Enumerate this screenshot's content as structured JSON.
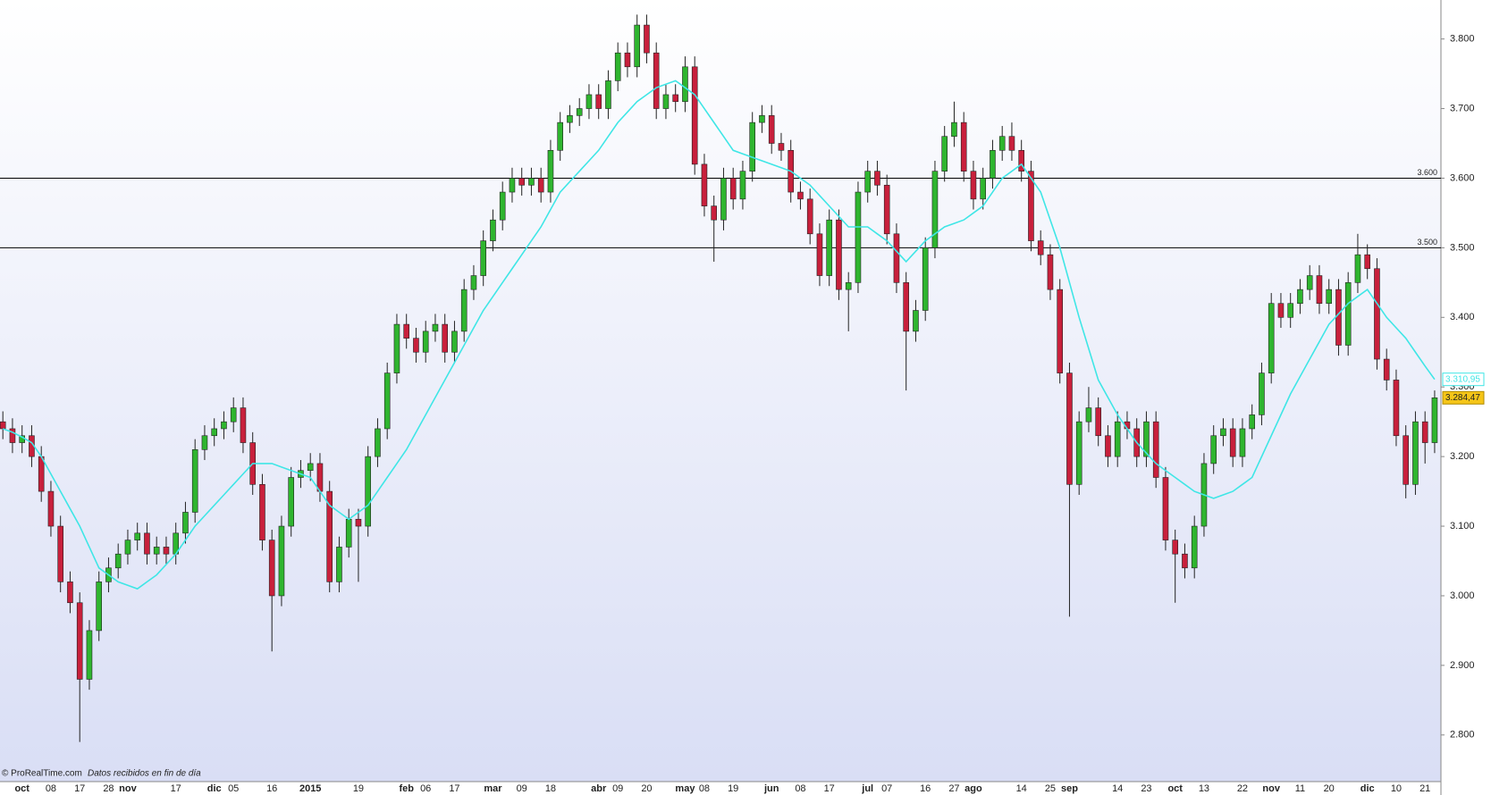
{
  "chart_data": {
    "type": "candlestick",
    "categories": [
      null,
      null,
      "oct",
      null,
      null,
      "08",
      null,
      null,
      "17",
      null,
      null,
      "28",
      null,
      "nov",
      null,
      null,
      null,
      null,
      "17",
      null,
      null,
      null,
      "dic",
      null,
      "05",
      null,
      null,
      null,
      "16",
      null,
      null,
      null,
      "2015",
      null,
      null,
      null,
      null,
      "19",
      null,
      null,
      null,
      null,
      "feb",
      null,
      "06",
      null,
      null,
      "17",
      null,
      null,
      null,
      "mar",
      null,
      null,
      "09",
      null,
      null,
      "18",
      null,
      null,
      null,
      null,
      "abr",
      null,
      "09",
      null,
      null,
      "20",
      null,
      null,
      null,
      "may",
      null,
      "08",
      null,
      null,
      "19",
      null,
      null,
      null,
      "jun",
      null,
      null,
      "08",
      null,
      null,
      "17",
      null,
      null,
      null,
      "jul",
      null,
      "07",
      null,
      null,
      null,
      "16",
      null,
      null,
      "27",
      null,
      "ago",
      null,
      null,
      null,
      null,
      "14",
      null,
      null,
      "25",
      null,
      "sep",
      null,
      null,
      null,
      null,
      "14",
      null,
      null,
      "23",
      null,
      null,
      "oct",
      null,
      null,
      "13",
      null,
      null,
      null,
      "22",
      null,
      null,
      "nov",
      null,
      null,
      "11",
      null,
      null,
      "20",
      null,
      null,
      null,
      "dic",
      null,
      null,
      "10",
      null,
      null,
      "21",
      null
    ],
    "open": [
      3250,
      3240,
      3220,
      3230,
      3200,
      3150,
      3100,
      3020,
      2990,
      2880,
      2950,
      3020,
      3040,
      3060,
      3080,
      3090,
      3060,
      3070,
      3060,
      3090,
      3120,
      3210,
      3230,
      3240,
      3250,
      3270,
      3220,
      3160,
      3080,
      3000,
      3100,
      3170,
      3180,
      3190,
      3150,
      3020,
      3070,
      3110,
      3100,
      3200,
      3240,
      3320,
      3390,
      3370,
      3350,
      3380,
      3390,
      3350,
      3380,
      3440,
      3460,
      3510,
      3540,
      3580,
      3600,
      3590,
      3600,
      3580,
      3640,
      3680,
      3690,
      3700,
      3720,
      3700,
      3740,
      3780,
      3760,
      3820,
      3780,
      3700,
      3720,
      3710,
      3760,
      3620,
      3560,
      3540,
      3600,
      3570,
      3610,
      3680,
      3690,
      3650,
      3640,
      3580,
      3570,
      3520,
      3460,
      3540,
      3440,
      3450,
      3580,
      3610,
      3590,
      3520,
      3450,
      3380,
      3410,
      3500,
      3610,
      3660,
      3680,
      3610,
      3570,
      3600,
      3640,
      3660,
      3640,
      3610,
      3510,
      3490,
      3440,
      3320,
      3160,
      3250,
      3270,
      3230,
      3200,
      3250,
      3240,
      3200,
      3250,
      3170,
      3080,
      3060,
      3040,
      3100,
      3190,
      3230,
      3240,
      3200,
      3240,
      3260,
      3320,
      3420,
      3400,
      3420,
      3440,
      3460,
      3420,
      3440,
      3360,
      3450,
      3490,
      3470,
      3340,
      3310,
      3230,
      3160,
      3250,
      3220
    ],
    "high": [
      3265,
      3255,
      3245,
      3245,
      3215,
      3165,
      3115,
      3035,
      3005,
      2965,
      3035,
      3055,
      3075,
      3095,
      3105,
      3105,
      3085,
      3085,
      3105,
      3135,
      3225,
      3245,
      3255,
      3265,
      3285,
      3285,
      3235,
      3175,
      3095,
      3115,
      3185,
      3195,
      3205,
      3205,
      3165,
      3085,
      3125,
      3125,
      3215,
      3255,
      3335,
      3405,
      3405,
      3385,
      3395,
      3405,
      3405,
      3395,
      3455,
      3475,
      3525,
      3555,
      3595,
      3615,
      3615,
      3615,
      3615,
      3655,
      3695,
      3705,
      3715,
      3735,
      3735,
      3755,
      3795,
      3795,
      3835,
      3835,
      3795,
      3735,
      3735,
      3775,
      3775,
      3635,
      3575,
      3615,
      3615,
      3625,
      3695,
      3705,
      3705,
      3665,
      3655,
      3595,
      3585,
      3535,
      3555,
      3555,
      3465,
      3595,
      3625,
      3625,
      3605,
      3535,
      3465,
      3425,
      3515,
      3625,
      3675,
      3710,
      3695,
      3625,
      3615,
      3655,
      3675,
      3680,
      3655,
      3625,
      3525,
      3505,
      3455,
      3335,
      3265,
      3300,
      3285,
      3245,
      3265,
      3265,
      3255,
      3265,
      3265,
      3185,
      3095,
      3075,
      3115,
      3205,
      3245,
      3255,
      3255,
      3255,
      3275,
      3335,
      3435,
      3435,
      3435,
      3455,
      3475,
      3475,
      3455,
      3455,
      3465,
      3520,
      3505,
      3485,
      3355,
      3325,
      3245,
      3265,
      3265,
      3295
    ],
    "low": [
      3225,
      3205,
      3205,
      3185,
      3135,
      3085,
      3005,
      2975,
      2790,
      2865,
      2935,
      3005,
      3025,
      3045,
      3065,
      3045,
      3045,
      3045,
      3045,
      3075,
      3105,
      3195,
      3215,
      3225,
      3235,
      3205,
      3145,
      3065,
      2920,
      2985,
      3085,
      3155,
      3165,
      3135,
      3005,
      3005,
      3055,
      3020,
      3085,
      3185,
      3225,
      3305,
      3355,
      3335,
      3335,
      3365,
      3335,
      3335,
      3365,
      3425,
      3445,
      3495,
      3525,
      3565,
      3575,
      3575,
      3565,
      3565,
      3625,
      3665,
      3675,
      3685,
      3685,
      3685,
      3725,
      3745,
      3745,
      3765,
      3685,
      3685,
      3695,
      3695,
      3605,
      3545,
      3480,
      3525,
      3555,
      3555,
      3595,
      3665,
      3635,
      3625,
      3565,
      3555,
      3505,
      3445,
      3445,
      3425,
      3380,
      3435,
      3565,
      3575,
      3505,
      3435,
      3295,
      3365,
      3395,
      3485,
      3595,
      3645,
      3595,
      3555,
      3555,
      3585,
      3625,
      3625,
      3595,
      3495,
      3475,
      3425,
      3305,
      2970,
      3145,
      3235,
      3215,
      3185,
      3185,
      3225,
      3185,
      3185,
      3155,
      3065,
      2990,
      3025,
      3025,
      3085,
      3175,
      3215,
      3185,
      3185,
      3225,
      3245,
      3305,
      3385,
      3385,
      3405,
      3425,
      3405,
      3405,
      3345,
      3345,
      3435,
      3455,
      3325,
      3295,
      3215,
      3140,
      3145,
      3190,
      3205
    ],
    "close": [
      3240,
      3220,
      3230,
      3200,
      3150,
      3100,
      3020,
      2990,
      2880,
      2950,
      3020,
      3040,
      3060,
      3080,
      3090,
      3060,
      3070,
      3060,
      3090,
      3120,
      3210,
      3230,
      3240,
      3250,
      3270,
      3220,
      3160,
      3080,
      3000,
      3100,
      3170,
      3180,
      3190,
      3150,
      3020,
      3070,
      3110,
      3100,
      3200,
      3240,
      3320,
      3390,
      3370,
      3350,
      3380,
      3390,
      3350,
      3380,
      3440,
      3460,
      3510,
      3540,
      3580,
      3600,
      3590,
      3600,
      3580,
      3640,
      3680,
      3690,
      3700,
      3720,
      3700,
      3740,
      3780,
      3760,
      3820,
      3780,
      3700,
      3720,
      3710,
      3760,
      3620,
      3560,
      3540,
      3600,
      3570,
      3610,
      3680,
      3690,
      3650,
      3640,
      3580,
      3570,
      3520,
      3460,
      3540,
      3440,
      3450,
      3580,
      3610,
      3590,
      3520,
      3450,
      3380,
      3410,
      3500,
      3610,
      3660,
      3680,
      3610,
      3570,
      3600,
      3640,
      3660,
      3640,
      3610,
      3510,
      3490,
      3440,
      3320,
      3160,
      3250,
      3270,
      3230,
      3200,
      3250,
      3240,
      3200,
      3250,
      3170,
      3080,
      3060,
      3040,
      3100,
      3190,
      3230,
      3240,
      3200,
      3240,
      3260,
      3320,
      3420,
      3400,
      3420,
      3440,
      3460,
      3420,
      3440,
      3360,
      3450,
      3490,
      3470,
      3340,
      3310,
      3230,
      3160,
      3250,
      3220,
      3284.47
    ],
    "last_close_label": "3.284,47",
    "up_color": "#2fb52f",
    "down_color": "#c8203c",
    "moving_average": {
      "color": "#3fe6e6",
      "last_label": "3.310,95",
      "values": [
        3240,
        3235,
        3228,
        3220,
        3200,
        3175,
        3150,
        3125,
        3100,
        3070,
        3040,
        3030,
        3020,
        3015,
        3010,
        3020,
        3030,
        3045,
        3060,
        3080,
        3100,
        3115,
        3130,
        3145,
        3160,
        3175,
        3190,
        3190,
        3190,
        3185,
        3180,
        3175,
        3170,
        3150,
        3130,
        3120,
        3110,
        3120,
        3130,
        3150,
        3170,
        3190,
        3210,
        3235,
        3260,
        3285,
        3310,
        3335,
        3360,
        3385,
        3410,
        3430,
        3450,
        3470,
        3490,
        3510,
        3530,
        3555,
        3580,
        3595,
        3610,
        3625,
        3640,
        3660,
        3680,
        3695,
        3710,
        3720,
        3730,
        3735,
        3740,
        3730,
        3720,
        3700,
        3680,
        3660,
        3640,
        3635,
        3630,
        3625,
        3620,
        3615,
        3610,
        3600,
        3590,
        3575,
        3560,
        3545,
        3530,
        3530,
        3530,
        3520,
        3510,
        3495,
        3480,
        3495,
        3510,
        3520,
        3530,
        3535,
        3540,
        3550,
        3560,
        3580,
        3600,
        3610,
        3620,
        3600,
        3580,
        3540,
        3500,
        3450,
        3400,
        3355,
        3310,
        3285,
        3260,
        3240,
        3220,
        3205,
        3190,
        3180,
        3170,
        3160,
        3150,
        3145,
        3140,
        3145,
        3150,
        3160,
        3170,
        3200,
        3230,
        3260,
        3290,
        3315,
        3340,
        3365,
        3390,
        3405,
        3420,
        3430,
        3440,
        3420,
        3400,
        3385,
        3370,
        3350,
        3330,
        3310.95
      ]
    },
    "hlines": [
      {
        "value": 3600,
        "label": "3.600"
      },
      {
        "value": 3500,
        "label": "3.500"
      }
    ],
    "ylim": [
      2733,
      3856
    ],
    "yticks": [
      {
        "value": 2800,
        "label": "2.800"
      },
      {
        "value": 2900,
        "label": "2.900"
      },
      {
        "value": 3000,
        "label": "3.000"
      },
      {
        "value": 3100,
        "label": "3.100"
      },
      {
        "value": 3200,
        "label": "3.200"
      },
      {
        "value": 3300,
        "label": "3.300"
      },
      {
        "value": 3400,
        "label": "3.400"
      },
      {
        "value": 3500,
        "label": "3.500"
      },
      {
        "value": 3600,
        "label": "3.600"
      },
      {
        "value": 3700,
        "label": "3.700"
      },
      {
        "value": 3800,
        "label": "3.800"
      }
    ],
    "footer": {
      "source": "© ProRealTime.com",
      "note": "Datos recibidos en fin de día"
    }
  }
}
